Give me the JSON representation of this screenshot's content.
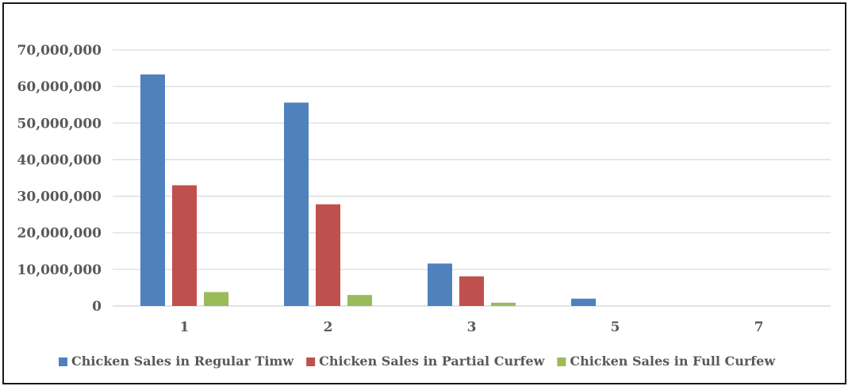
{
  "chart_data": {
    "type": "bar",
    "title": "",
    "xlabel": "",
    "ylabel": "",
    "categories": [
      "1",
      "2",
      "3",
      "5",
      "7"
    ],
    "series": [
      {
        "name": "Chicken Sales in Regular Timw",
        "color": "#4f81bd",
        "values": [
          63300000,
          55600000,
          11600000,
          2000000,
          0
        ]
      },
      {
        "name": "Chicken Sales in Partial Curfew",
        "color": "#c0504d",
        "values": [
          33000000,
          27800000,
          8100000,
          0,
          0
        ]
      },
      {
        "name": "Chicken Sales in Full Curfew",
        "color": "#9bbb59",
        "values": [
          3800000,
          3000000,
          900000,
          0,
          0
        ]
      }
    ],
    "ylim": [
      0,
      70000000
    ],
    "yticks": [
      "0",
      "10,000,000",
      "20,000,000",
      "30,000,000",
      "40,000,000",
      "50,000,000",
      "60,000,000",
      "70,000,000"
    ],
    "ytick_values": [
      0,
      10000000,
      20000000,
      30000000,
      40000000,
      50000000,
      60000000,
      70000000
    ],
    "grid": true,
    "legend": "bottom"
  }
}
